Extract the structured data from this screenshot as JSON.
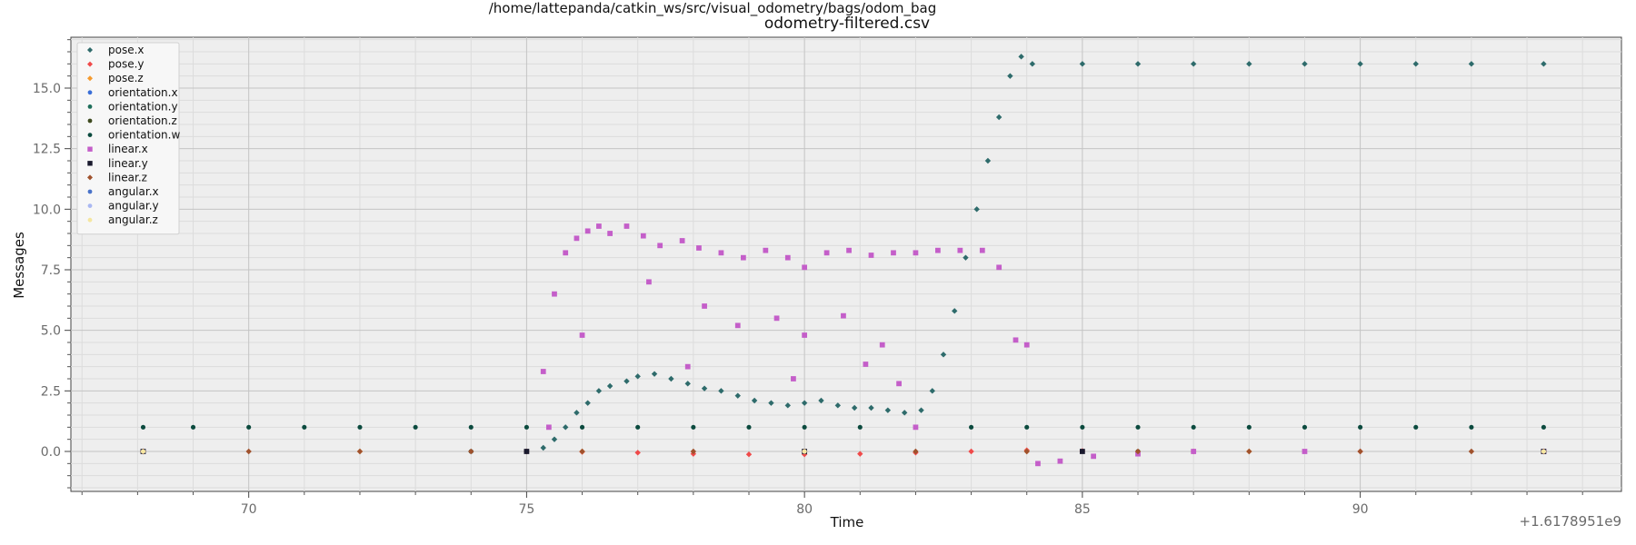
{
  "chart_data": {
    "type": "scatter",
    "title": "/home/lattepanda/catkin_ws/src/visual_odometry/bags/odom_bag",
    "subtitle": "odometry-filtered.csv",
    "xlabel": "Time",
    "ylabel": "Messages",
    "x_offset_label": "+1.6178951e9",
    "xlim": [
      66.8,
      94.7
    ],
    "ylim": [
      -1.65,
      17.1
    ],
    "x_ticks": [
      70,
      75,
      80,
      85,
      90
    ],
    "x_tick_labels": [
      "70",
      "75",
      "80",
      "85",
      "90"
    ],
    "y_ticks": [
      0.0,
      2.5,
      5.0,
      7.5,
      10.0,
      12.5,
      15.0
    ],
    "y_tick_labels": [
      "0.0",
      "2.5",
      "5.0",
      "7.5",
      "10.0",
      "12.5",
      "15.0"
    ],
    "grid": true,
    "legend_position": "top-left",
    "series": [
      {
        "name": "pose.x",
        "color": "#2e6b6b",
        "marker": "diamond",
        "points": [
          [
            68.1,
            0.0
          ],
          [
            75.0,
            0.0
          ],
          [
            75.3,
            0.15
          ],
          [
            75.5,
            0.5
          ],
          [
            75.7,
            1.0
          ],
          [
            75.9,
            1.6
          ],
          [
            76.1,
            2.0
          ],
          [
            76.3,
            2.5
          ],
          [
            76.5,
            2.7
          ],
          [
            76.8,
            2.9
          ],
          [
            77.0,
            3.1
          ],
          [
            77.3,
            3.2
          ],
          [
            77.6,
            3.0
          ],
          [
            77.9,
            2.8
          ],
          [
            78.2,
            2.6
          ],
          [
            78.5,
            2.5
          ],
          [
            78.8,
            2.3
          ],
          [
            79.1,
            2.1
          ],
          [
            79.4,
            2.0
          ],
          [
            79.7,
            1.9
          ],
          [
            80.0,
            2.0
          ],
          [
            80.3,
            2.1
          ],
          [
            80.6,
            1.9
          ],
          [
            80.9,
            1.8
          ],
          [
            81.2,
            1.8
          ],
          [
            81.5,
            1.7
          ],
          [
            81.8,
            1.6
          ],
          [
            82.1,
            1.7
          ],
          [
            82.3,
            2.5
          ],
          [
            82.5,
            4.0
          ],
          [
            82.7,
            5.8
          ],
          [
            82.9,
            8.0
          ],
          [
            83.1,
            10.0
          ],
          [
            83.3,
            12.0
          ],
          [
            83.5,
            13.8
          ],
          [
            83.7,
            15.5
          ],
          [
            83.9,
            16.3
          ],
          [
            84.1,
            16.0
          ],
          [
            85.0,
            16.0
          ],
          [
            86.0,
            16.0
          ],
          [
            87.0,
            16.0
          ],
          [
            88.0,
            16.0
          ],
          [
            89.0,
            16.0
          ],
          [
            90.0,
            16.0
          ],
          [
            91.0,
            16.0
          ],
          [
            92.0,
            16.0
          ],
          [
            93.3,
            16.0
          ]
        ]
      },
      {
        "name": "pose.y",
        "color": "#f04a4a",
        "marker": "diamond",
        "points": [
          [
            68.1,
            0.0
          ],
          [
            75.0,
            0.0
          ],
          [
            76.0,
            -0.02
          ],
          [
            77.0,
            -0.05
          ],
          [
            78.0,
            -0.1
          ],
          [
            79.0,
            -0.12
          ],
          [
            80.0,
            -0.12
          ],
          [
            81.0,
            -0.1
          ],
          [
            82.0,
            -0.05
          ],
          [
            83.0,
            0.0
          ],
          [
            84.0,
            0.05
          ],
          [
            85.0,
            0.02
          ],
          [
            87.0,
            0.0
          ],
          [
            90.0,
            0.0
          ],
          [
            93.3,
            0.0
          ]
        ]
      },
      {
        "name": "pose.z",
        "color": "#f59a2e",
        "marker": "diamond",
        "points": [
          [
            68.1,
            0.0
          ],
          [
            72.0,
            0.0
          ],
          [
            76.0,
            0.0
          ],
          [
            80.0,
            0.0
          ],
          [
            84.0,
            0.0
          ],
          [
            88.0,
            0.0
          ],
          [
            93.3,
            0.0
          ]
        ]
      },
      {
        "name": "orientation.x",
        "color": "#3a6fd8",
        "marker": "dot",
        "points": [
          [
            68.1,
            0.0
          ],
          [
            74.0,
            0.0
          ],
          [
            80.0,
            0.0
          ],
          [
            86.0,
            0.0
          ],
          [
            93.3,
            0.0
          ]
        ]
      },
      {
        "name": "orientation.y",
        "color": "#1e6e5a",
        "marker": "dot",
        "points": [
          [
            68.1,
            0.0
          ],
          [
            74.0,
            0.0
          ],
          [
            80.0,
            0.0
          ],
          [
            86.0,
            0.0
          ],
          [
            93.3,
            0.0
          ]
        ]
      },
      {
        "name": "orientation.z",
        "color": "#3e4a1e",
        "marker": "dot",
        "points": [
          [
            68.1,
            0.0
          ],
          [
            74.0,
            0.0
          ],
          [
            80.0,
            0.0
          ],
          [
            86.0,
            0.0
          ],
          [
            93.3,
            0.0
          ]
        ]
      },
      {
        "name": "orientation.w",
        "color": "#0b4a3e",
        "marker": "dot",
        "points": [
          [
            68.1,
            1.0
          ],
          [
            69.0,
            1.0
          ],
          [
            70.0,
            1.0
          ],
          [
            71.0,
            1.0
          ],
          [
            72.0,
            1.0
          ],
          [
            73.0,
            1.0
          ],
          [
            74.0,
            1.0
          ],
          [
            75.0,
            1.0
          ],
          [
            76.0,
            1.0
          ],
          [
            77.0,
            1.0
          ],
          [
            78.0,
            1.0
          ],
          [
            79.0,
            1.0
          ],
          [
            80.0,
            1.0
          ],
          [
            81.0,
            1.0
          ],
          [
            82.0,
            1.0
          ],
          [
            83.0,
            1.0
          ],
          [
            84.0,
            1.0
          ],
          [
            85.0,
            1.0
          ],
          [
            86.0,
            1.0
          ],
          [
            87.0,
            1.0
          ],
          [
            88.0,
            1.0
          ],
          [
            89.0,
            1.0
          ],
          [
            90.0,
            1.0
          ],
          [
            91.0,
            1.0
          ],
          [
            92.0,
            1.0
          ],
          [
            93.3,
            1.0
          ]
        ]
      },
      {
        "name": "linear.x",
        "color": "#c45ec9",
        "marker": "square",
        "points": [
          [
            75.3,
            3.3
          ],
          [
            75.5,
            6.5
          ],
          [
            75.7,
            8.2
          ],
          [
            75.9,
            8.8
          ],
          [
            76.1,
            9.1
          ],
          [
            76.3,
            9.3
          ],
          [
            76.5,
            9.0
          ],
          [
            76.8,
            9.3
          ],
          [
            77.1,
            8.9
          ],
          [
            77.4,
            8.5
          ],
          [
            77.8,
            8.7
          ],
          [
            78.1,
            8.4
          ],
          [
            78.5,
            8.2
          ],
          [
            78.9,
            8.0
          ],
          [
            79.3,
            8.3
          ],
          [
            79.7,
            8.0
          ],
          [
            80.0,
            7.6
          ],
          [
            80.4,
            8.2
          ],
          [
            80.8,
            8.3
          ],
          [
            81.2,
            8.1
          ],
          [
            81.6,
            8.2
          ],
          [
            82.0,
            8.2
          ],
          [
            82.4,
            8.3
          ],
          [
            82.8,
            8.3
          ],
          [
            83.2,
            8.3
          ],
          [
            83.5,
            7.6
          ],
          [
            83.8,
            4.6
          ],
          [
            84.0,
            4.4
          ],
          [
            84.2,
            -0.5
          ],
          [
            84.6,
            -0.4
          ],
          [
            85.2,
            -0.2
          ],
          [
            86.0,
            -0.1
          ],
          [
            87.0,
            0.0
          ],
          [
            89.0,
            0.0
          ],
          [
            93.3,
            0.0
          ],
          [
            75.4,
            1.0
          ],
          [
            76.0,
            4.8
          ],
          [
            77.2,
            7.0
          ],
          [
            78.2,
            6.0
          ],
          [
            78.8,
            5.2
          ],
          [
            79.5,
            5.5
          ],
          [
            80.0,
            4.8
          ],
          [
            80.7,
            5.6
          ],
          [
            81.1,
            3.6
          ],
          [
            81.4,
            4.4
          ],
          [
            81.7,
            2.8
          ],
          [
            82.0,
            1.0
          ],
          [
            77.9,
            3.5
          ],
          [
            79.8,
            3.0
          ]
        ]
      },
      {
        "name": "linear.y",
        "color": "#1a1a2e",
        "marker": "square",
        "points": [
          [
            68.1,
            0.0
          ],
          [
            75.0,
            0.0
          ],
          [
            80.0,
            0.0
          ],
          [
            85.0,
            0.0
          ],
          [
            93.3,
            0.0
          ]
        ]
      },
      {
        "name": "linear.z",
        "color": "#a0522d",
        "marker": "diamond",
        "points": [
          [
            68.1,
            0.0
          ],
          [
            70.0,
            0.0
          ],
          [
            72.0,
            0.0
          ],
          [
            74.0,
            0.0
          ],
          [
            76.0,
            0.0
          ],
          [
            78.0,
            0.0
          ],
          [
            80.0,
            0.0
          ],
          [
            82.0,
            0.0
          ],
          [
            84.0,
            0.0
          ],
          [
            86.0,
            0.0
          ],
          [
            88.0,
            0.0
          ],
          [
            90.0,
            0.0
          ],
          [
            92.0,
            0.0
          ],
          [
            93.3,
            0.0
          ]
        ]
      },
      {
        "name": "angular.x",
        "color": "#4a73c9",
        "marker": "dot",
        "points": [
          [
            68.1,
            0.0
          ],
          [
            80.0,
            0.0
          ],
          [
            93.3,
            0.0
          ]
        ]
      },
      {
        "name": "angular.y",
        "color": "#aab8f2",
        "marker": "dot",
        "points": [
          [
            68.1,
            0.0
          ],
          [
            80.0,
            0.0
          ],
          [
            93.3,
            0.0
          ]
        ]
      },
      {
        "name": "angular.z",
        "color": "#f5e6a0",
        "marker": "dot",
        "points": [
          [
            68.1,
            0.0
          ],
          [
            80.0,
            0.0
          ],
          [
            93.3,
            0.0
          ]
        ]
      }
    ]
  }
}
